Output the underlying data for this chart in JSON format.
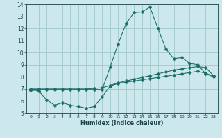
{
  "title": "",
  "xlabel": "Humidex (Indice chaleur)",
  "bg_color": "#cce8ec",
  "grid_color": "#a0c8cc",
  "line_color": "#1a6e6a",
  "xlim": [
    -0.5,
    23.5
  ],
  "ylim": [
    5,
    14
  ],
  "xticks": [
    0,
    1,
    2,
    3,
    4,
    5,
    6,
    7,
    8,
    9,
    10,
    11,
    12,
    13,
    14,
    15,
    16,
    17,
    18,
    19,
    20,
    21,
    22,
    23
  ],
  "yticks": [
    5,
    6,
    7,
    8,
    9,
    10,
    11,
    12,
    13,
    14
  ],
  "curve1_x": [
    0,
    1,
    2,
    3,
    4,
    5,
    6,
    7,
    8,
    9,
    10,
    11,
    12,
    13,
    14,
    15,
    16,
    17,
    18,
    19,
    20,
    21,
    22,
    23
  ],
  "curve1_y": [
    6.9,
    6.85,
    6.1,
    5.65,
    5.85,
    5.65,
    5.55,
    5.4,
    5.55,
    6.35,
    7.25,
    7.45,
    7.55,
    7.65,
    7.75,
    7.85,
    7.95,
    8.05,
    8.15,
    8.25,
    8.35,
    8.45,
    8.3,
    8.05
  ],
  "curve2_x": [
    0,
    1,
    2,
    3,
    4,
    5,
    6,
    7,
    8,
    9,
    10,
    11,
    12,
    13,
    14,
    15,
    16,
    17,
    18,
    19,
    20,
    21,
    22,
    23
  ],
  "curve2_y": [
    7.0,
    7.0,
    7.0,
    7.0,
    7.0,
    7.0,
    7.0,
    7.0,
    7.05,
    7.1,
    7.3,
    7.5,
    7.65,
    7.8,
    7.95,
    8.1,
    8.25,
    8.4,
    8.55,
    8.65,
    8.75,
    8.85,
    8.75,
    8.1
  ],
  "curve3_x": [
    0,
    1,
    2,
    3,
    4,
    5,
    6,
    7,
    8,
    9,
    10,
    11,
    12,
    13,
    14,
    15,
    16,
    17,
    18,
    19,
    20,
    21,
    22,
    23
  ],
  "curve3_y": [
    6.95,
    6.95,
    6.95,
    6.95,
    6.95,
    6.95,
    6.95,
    6.95,
    6.95,
    6.95,
    8.8,
    10.7,
    12.4,
    13.3,
    13.35,
    13.75,
    12.0,
    10.3,
    9.5,
    9.6,
    9.1,
    9.0,
    8.25,
    8.0
  ],
  "marker_size": 2.5,
  "linewidth": 0.8
}
